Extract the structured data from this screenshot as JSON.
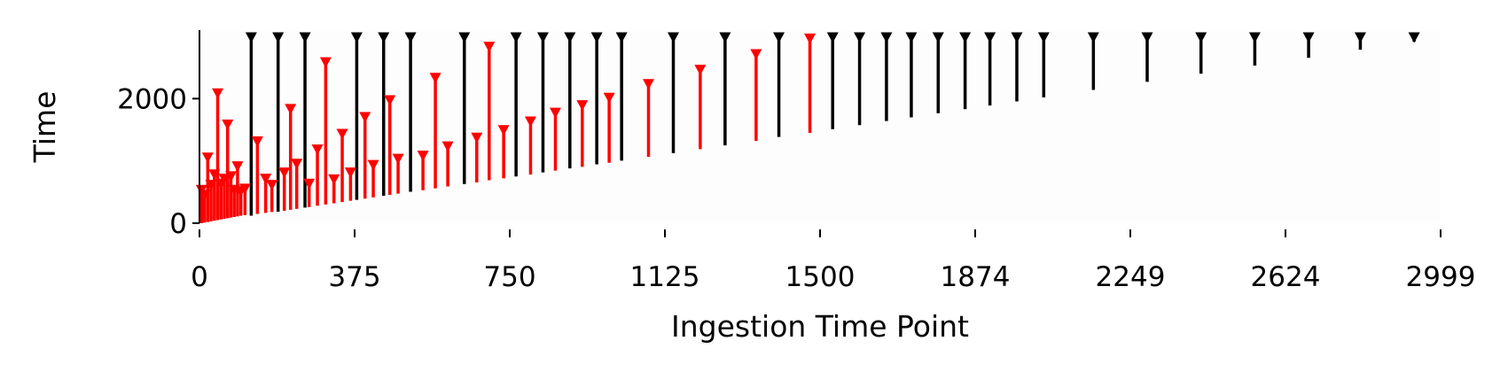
{
  "chart_data": {
    "type": "bar",
    "subtype": "range-interval",
    "xlabel": "Ingestion Time Point",
    "ylabel": "Time",
    "xlim": [
      0,
      2999
    ],
    "ylim": [
      0,
      3100
    ],
    "x_ticks": [
      "0",
      "375",
      "750",
      "1125",
      "1500",
      "1874",
      "2249",
      "2624",
      "2999"
    ],
    "y_ticks": [
      "0",
      "2000"
    ],
    "grid": false,
    "legend": "none",
    "colors": {
      "black": "#000000",
      "red": "#ff0000"
    },
    "series": [
      {
        "color": "black",
        "x": [
          125,
          190,
          255,
          380,
          445,
          510,
          640,
          765,
          830,
          895,
          960,
          1020,
          1145,
          1270,
          1400,
          1530,
          1595,
          1660,
          1720,
          1785,
          1850,
          1910,
          1975,
          2040,
          2160,
          2290,
          2420,
          2550,
          2680,
          2805,
          2935
        ],
        "low": [
          120,
          185,
          250,
          375,
          440,
          505,
          630,
          750,
          815,
          880,
          945,
          1005,
          1125,
          1250,
          1385,
          1510,
          1575,
          1640,
          1700,
          1765,
          1830,
          1890,
          1955,
          2020,
          2140,
          2270,
          2400,
          2530,
          2655,
          2785,
          2915
        ],
        "high": [
          3050,
          3050,
          3050,
          3050,
          3050,
          3050,
          3050,
          3050,
          3050,
          3050,
          3050,
          3050,
          3050,
          3050,
          3050,
          3050,
          3050,
          3050,
          3050,
          3050,
          3050,
          3050,
          3050,
          3050,
          3050,
          3050,
          3050,
          3050,
          3050,
          3050,
          3050
        ]
      },
      {
        "color": "red",
        "x": [
          5,
          12,
          20,
          28,
          36,
          44,
          52,
          60,
          68,
          76,
          84,
          92,
          100,
          110,
          140,
          160,
          175,
          205,
          220,
          235,
          265,
          285,
          305,
          325,
          345,
          365,
          400,
          420,
          460,
          480,
          540,
          570,
          600,
          670,
          700,
          735,
          800,
          860,
          925,
          990,
          1085,
          1210,
          1345,
          1475
        ],
        "low": [
          0,
          10,
          20,
          30,
          40,
          50,
          60,
          70,
          80,
          90,
          100,
          110,
          120,
          130,
          150,
          165,
          180,
          200,
          215,
          230,
          260,
          280,
          300,
          320,
          340,
          360,
          395,
          415,
          455,
          475,
          530,
          560,
          590,
          655,
          690,
          720,
          780,
          845,
          905,
          970,
          1065,
          1190,
          1320,
          1450
        ],
        "high": [
          600,
          520,
          1120,
          680,
          850,
          2150,
          700,
          780,
          1650,
          820,
          600,
          980,
          580,
          620,
          1380,
          780,
          680,
          880,
          1900,
          1020,
          700,
          1250,
          2650,
          770,
          1500,
          880,
          1770,
          1000,
          2040,
          1100,
          1150,
          2400,
          1300,
          1440,
          2900,
          1560,
          1700,
          1840,
          1960,
          2080,
          2300,
          2530,
          2780,
          3030
        ]
      }
    ]
  }
}
